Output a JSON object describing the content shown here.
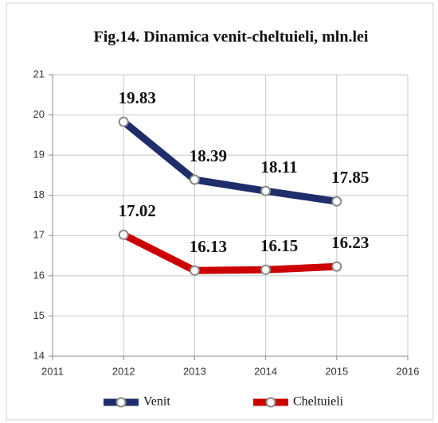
{
  "chart_data": {
    "type": "line",
    "title": "Fig.14.  Dinamica venit-cheltuieli, mln.lei",
    "x": [
      2012,
      2013,
      2014,
      2015
    ],
    "series": [
      {
        "name": "Venit",
        "color": "#1f2d6b",
        "values": [
          19.83,
          18.39,
          18.11,
          17.85
        ]
      },
      {
        "name": "Cheltuieli",
        "color": "#cc0000",
        "values": [
          17.02,
          16.13,
          16.15,
          16.23
        ]
      }
    ],
    "xlim": [
      2011,
      2016
    ],
    "xticks": [
      2011,
      2012,
      2013,
      2014,
      2015,
      2016
    ],
    "ylim": [
      14,
      21
    ],
    "yticks": [
      14,
      15,
      16,
      17,
      18,
      19,
      20,
      21
    ],
    "grid": true,
    "legend": "bottom"
  }
}
